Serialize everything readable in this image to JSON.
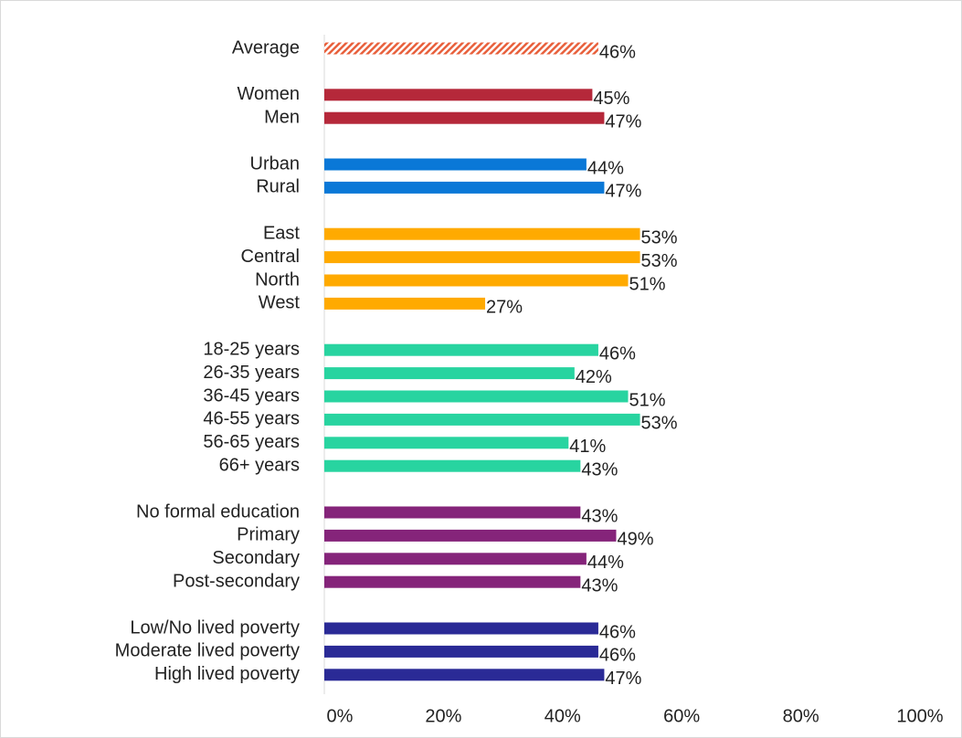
{
  "chart_data": {
    "type": "bar",
    "orientation": "horizontal",
    "groups": [
      {
        "color": "#e8603c",
        "pattern": "hatch",
        "categories": [
          "Average"
        ],
        "values": [
          46
        ],
        "value_labels": [
          "46%"
        ]
      },
      {
        "color": "#b5283a",
        "categories": [
          "Women",
          "Men"
        ],
        "values": [
          45,
          47
        ],
        "value_labels": [
          "45%",
          "47%"
        ]
      },
      {
        "color": "#0a78d7",
        "categories": [
          "Urban",
          "Rural"
        ],
        "values": [
          44,
          47
        ],
        "value_labels": [
          "44%",
          "47%"
        ]
      },
      {
        "color": "#ffaa00",
        "categories": [
          "East",
          "Central",
          "North",
          "West"
        ],
        "values": [
          53,
          53,
          51,
          27
        ],
        "value_labels": [
          "53%",
          "53%",
          "51%",
          "27%"
        ]
      },
      {
        "color": "#28d4a0",
        "categories": [
          "18-25 years",
          "26-35 years",
          "36-45 years",
          "46-55 years",
          "56-65 years",
          "66+ years"
        ],
        "values": [
          46,
          42,
          51,
          53,
          41,
          43
        ],
        "value_labels": [
          "46%",
          "42%",
          "51%",
          "53%",
          "41%",
          "43%"
        ]
      },
      {
        "color": "#85247a",
        "categories": [
          "No formal education",
          "Primary",
          "Secondary",
          "Post-secondary"
        ],
        "values": [
          43,
          49,
          44,
          43
        ],
        "value_labels": [
          "43%",
          "49%",
          "44%",
          "43%"
        ]
      },
      {
        "color": "#2a2a96",
        "categories": [
          "Low/No lived poverty",
          "Moderate lived poverty",
          "High lived poverty"
        ],
        "values": [
          46,
          46,
          47
        ],
        "value_labels": [
          "46%",
          "46%",
          "47%"
        ]
      }
    ],
    "xlim": [
      0,
      100
    ],
    "xticks": [
      {
        "value": 0,
        "label": "0%"
      },
      {
        "value": 20,
        "label": "20%"
      },
      {
        "value": 40,
        "label": "40%"
      },
      {
        "value": 60,
        "label": "60%"
      },
      {
        "value": 80,
        "label": "80%"
      },
      {
        "value": 100,
        "label": "100%"
      }
    ]
  }
}
